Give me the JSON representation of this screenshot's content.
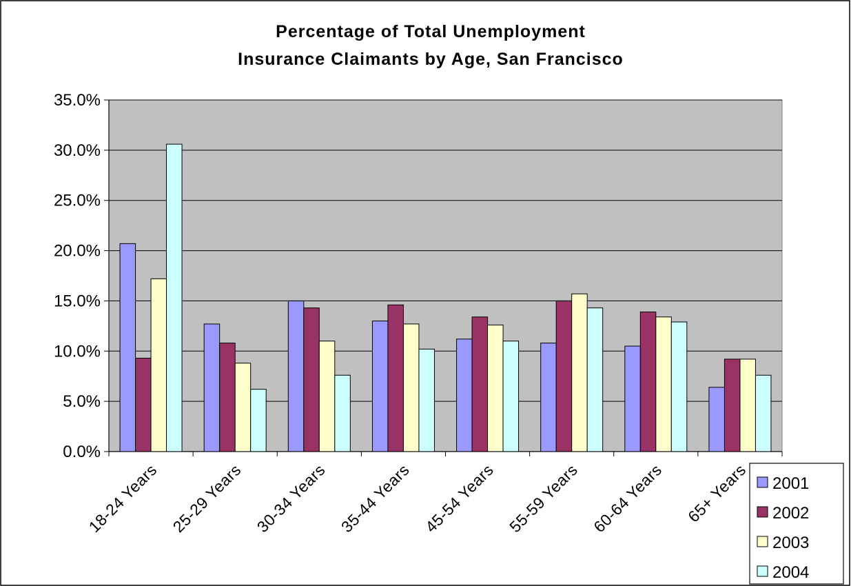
{
  "chart_data": {
    "type": "bar",
    "title": [
      "Percentage of Total Unemployment",
      "Insurance Claimants by Age, San Francisco"
    ],
    "xlabel": "",
    "ylabel": "",
    "ylim": [
      0,
      35
    ],
    "y_ticks": [
      "0.0%",
      "5.0%",
      "10.0%",
      "15.0%",
      "20.0%",
      "25.0%",
      "30.0%",
      "35.0%"
    ],
    "y_tick_values": [
      0,
      5,
      10,
      15,
      20,
      25,
      30,
      35
    ],
    "categories": [
      "18-24 Years",
      "25-29 Years",
      "30-34 Years",
      "35-44 Years",
      "45-54 Years",
      "55-59 Years",
      "60-64 Years",
      "65+ Years"
    ],
    "series": [
      {
        "name": "2001",
        "color": "#9999ff",
        "values": [
          20.7,
          12.7,
          15.0,
          13.0,
          11.2,
          10.8,
          10.5,
          6.4
        ]
      },
      {
        "name": "2002",
        "color": "#993366",
        "values": [
          9.3,
          10.8,
          14.3,
          14.6,
          13.4,
          15.0,
          13.9,
          9.2
        ]
      },
      {
        "name": "2003",
        "color": "#ffffcc",
        "values": [
          17.2,
          8.8,
          11.0,
          12.7,
          12.6,
          15.7,
          13.4,
          9.2
        ]
      },
      {
        "name": "2004",
        "color": "#ccffff",
        "values": [
          30.6,
          6.2,
          7.6,
          10.2,
          11.0,
          14.3,
          12.9,
          7.6
        ]
      }
    ],
    "plot_background": "#c0c0c0",
    "grid": true,
    "legend_position": "bottom-right"
  }
}
